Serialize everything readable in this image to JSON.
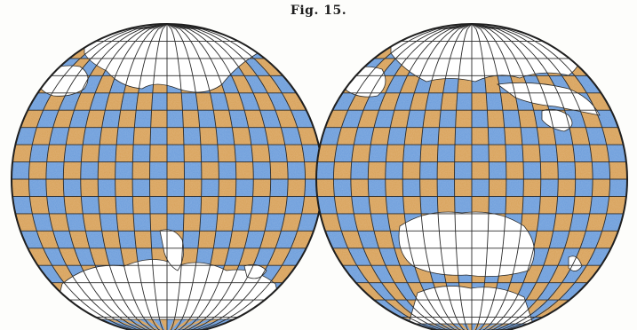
{
  "figure": {
    "title": "Fig. 15."
  },
  "map": {
    "type": "checkerboard world map, two hemispheres",
    "hemisphere_count": 2,
    "colors": {
      "ocean_a": "#6f9fdc",
      "ocean_b": "#d9a35c",
      "land": "#ffffff",
      "graticule": "#2b2b2b",
      "outline": "#1f1f1f"
    },
    "hemispheres": [
      {
        "side": "left",
        "landmasses": [
          "north-pole-land",
          "europe-arctic",
          "south-america-tip",
          "antarctica"
        ]
      },
      {
        "side": "right",
        "landmasses": [
          "asia-north",
          "alaska-arctic",
          "australia",
          "antarctica"
        ]
      }
    ]
  }
}
